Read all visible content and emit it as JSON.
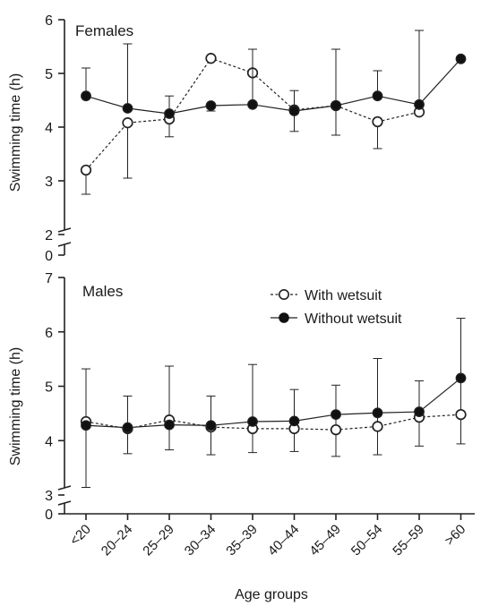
{
  "chart_data": [
    {
      "type": "line",
      "title": "Females",
      "xlabel": "",
      "ylabel": "Swimming time (h)",
      "categories": [
        "<20",
        "20–24",
        "25–29",
        "30–34",
        "35–39",
        "40–44",
        "45–49",
        "50–54",
        "55–59",
        ">60"
      ],
      "yticks": [
        0,
        2,
        3,
        4,
        5,
        6
      ],
      "ylim": [
        0,
        6
      ],
      "axis_break": [
        0,
        2
      ],
      "series": [
        {
          "name": "With wetsuit",
          "marker": "open-circle",
          "line": "dashed",
          "values": [
            3.2,
            4.08,
            4.15,
            5.28,
            5.01,
            4.32,
            4.4,
            4.1,
            4.28,
            null
          ],
          "error_upper": [
            null,
            null,
            null,
            null,
            null,
            null,
            null,
            null,
            null,
            null
          ],
          "error_lower": [
            2.75,
            3.05,
            3.82,
            null,
            null,
            null,
            null,
            3.6,
            null,
            null
          ]
        },
        {
          "name": "Without wetsuit",
          "marker": "filled-circle",
          "line": "solid",
          "values": [
            4.58,
            4.35,
            4.25,
            4.4,
            4.42,
            4.3,
            4.4,
            4.58,
            4.42,
            5.27
          ],
          "error_upper": [
            5.1,
            5.55,
            4.58,
            null,
            5.45,
            4.68,
            5.45,
            5.05,
            5.8,
            null
          ],
          "error_lower": [
            null,
            null,
            null,
            4.3,
            null,
            3.92,
            3.85,
            null,
            null,
            null
          ]
        }
      ]
    },
    {
      "type": "line",
      "title": "Males",
      "xlabel": "Age groups",
      "ylabel": "Swimming time (h)",
      "categories": [
        "<20",
        "20–24",
        "25–29",
        "30–34",
        "35–39",
        "40–44",
        "45–49",
        "50–54",
        "55–59",
        ">60"
      ],
      "yticks": [
        0,
        3,
        4,
        5,
        6,
        7
      ],
      "ylim": [
        0,
        7
      ],
      "axis_break": [
        0,
        3
      ],
      "legend_position": "top-right",
      "series": [
        {
          "name": "With wetsuit",
          "marker": "open-circle",
          "line": "dashed",
          "values": [
            4.35,
            4.22,
            4.38,
            4.25,
            4.22,
            4.22,
            4.2,
            4.26,
            4.43,
            4.48
          ],
          "error_upper": [
            5.32,
            4.82,
            5.37,
            4.82,
            5.4,
            4.94,
            5.02,
            5.51,
            5.1,
            6.25
          ],
          "error_lower": [
            3.14,
            3.76,
            3.83,
            3.74,
            3.78,
            3.8,
            3.71,
            3.74,
            3.9,
            3.94
          ]
        },
        {
          "name": "Without wetsuit",
          "marker": "filled-circle",
          "line": "solid",
          "values": [
            4.28,
            4.24,
            4.29,
            4.28,
            4.35,
            4.36,
            4.48,
            4.51,
            4.53,
            5.15
          ],
          "error_upper": [
            null,
            null,
            null,
            null,
            null,
            null,
            null,
            null,
            null,
            null
          ],
          "error_lower": [
            null,
            null,
            null,
            null,
            null,
            null,
            null,
            null,
            null,
            null
          ]
        }
      ]
    }
  ]
}
